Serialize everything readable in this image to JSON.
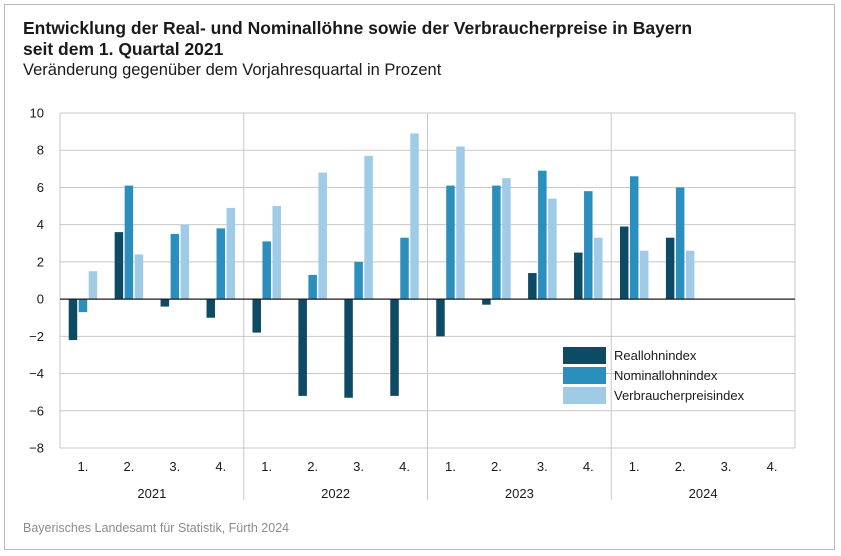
{
  "header": {
    "title_line1": "Entwicklung der Real- und Nominallöhne sowie der Verbraucherpreise in Bayern",
    "title_line2": "seit dem 1. Quartal 2021",
    "subtitle": "Veränderung gegenüber dem Vorjahresquartal in Prozent"
  },
  "source": "Bayerisches Landesamt für Statistik, Fürth 2024",
  "colors": {
    "Reallohnindex": "#0d4a63",
    "Nominallohnindex": "#2a8fbd",
    "Verbraucherpreisindex": "#9fcbe7",
    "grid": "#c8c8c8",
    "zero_line": "#1a1a1a"
  },
  "chart_data": {
    "type": "bar",
    "title": "Entwicklung der Real- und Nominallöhne sowie der Verbraucherpreise in Bayern seit dem 1. Quartal 2021",
    "subtitle": "Veränderung gegenüber dem Vorjahresquartal in Prozent",
    "xlabel": "",
    "ylabel": "",
    "ylim": [
      -8,
      10
    ],
    "yticks": [
      "10",
      "8",
      "6",
      "4",
      "2",
      "0",
      "−2",
      "−4",
      "−6",
      "−8"
    ],
    "ytick_values": [
      10,
      8,
      6,
      4,
      2,
      0,
      -2,
      -4,
      -6,
      -8
    ],
    "grid": true,
    "legend_position": "lower-right",
    "quarter_labels": [
      "1.",
      "2.",
      "3.",
      "4.",
      "1.",
      "2.",
      "3.",
      "4.",
      "1.",
      "2.",
      "3.",
      "4.",
      "1.",
      "2.",
      "3.",
      "4."
    ],
    "years": [
      "2021",
      "2022",
      "2023",
      "2024"
    ],
    "series": [
      {
        "name": "Reallohnindex",
        "values": [
          -2.2,
          3.6,
          -0.4,
          -1.0,
          -1.8,
          -5.2,
          -5.3,
          -5.2,
          -2.0,
          -0.3,
          1.4,
          2.5,
          3.9,
          3.3,
          null,
          null
        ]
      },
      {
        "name": "Nominallohnindex",
        "values": [
          -0.7,
          6.1,
          3.5,
          3.8,
          3.1,
          1.3,
          2.0,
          3.3,
          6.1,
          6.1,
          6.9,
          5.8,
          6.6,
          6.0,
          null,
          null
        ]
      },
      {
        "name": "Verbraucherpreisindex",
        "values": [
          1.5,
          2.4,
          4.0,
          4.9,
          5.0,
          6.8,
          7.7,
          8.9,
          8.2,
          6.5,
          5.4,
          3.3,
          2.6,
          2.6,
          null,
          null
        ]
      }
    ]
  }
}
